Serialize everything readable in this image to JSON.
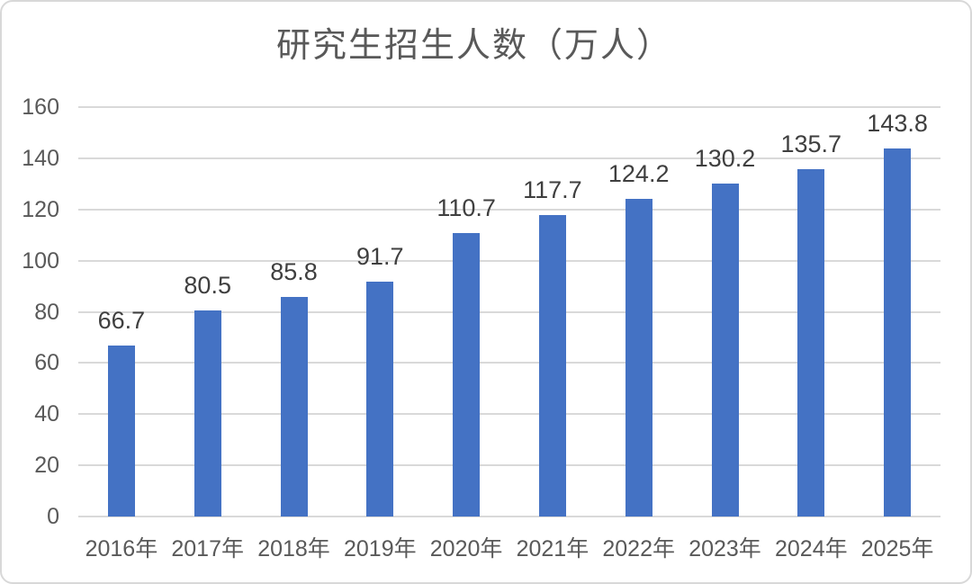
{
  "chart_data": {
    "type": "bar",
    "title": "研究生招生人数（万人）",
    "categories": [
      "2016年",
      "2017年",
      "2018年",
      "2019年",
      "2020年",
      "2021年",
      "2022年",
      "2023年",
      "2024年",
      "2025年"
    ],
    "values": [
      66.7,
      80.5,
      85.8,
      91.7,
      110.7,
      117.7,
      124.2,
      130.2,
      135.7,
      143.8
    ],
    "data_labels": [
      "66.7",
      "80.5",
      "85.8",
      "91.7",
      "110.7",
      "117.7",
      "124.2",
      "130.2",
      "135.7",
      "143.8"
    ],
    "xlabel": "",
    "ylabel": "",
    "ylim": [
      0,
      160
    ],
    "y_ticks": [
      0,
      20,
      40,
      60,
      80,
      100,
      120,
      140,
      160
    ],
    "grid": true,
    "legend": false,
    "bar_color": "#4472C4"
  },
  "colors": {
    "bar": "#4472C4",
    "gridline": "#D9D9D9",
    "axis_text": "#595959",
    "data_label_text": "#3F3F3F",
    "title_text": "#595959",
    "background": "#FFFFFF",
    "card_border": "#D8D8D8"
  }
}
